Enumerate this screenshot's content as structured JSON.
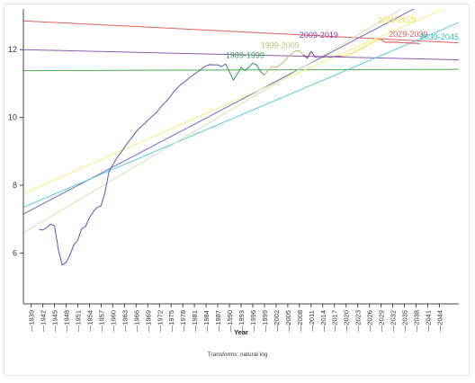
{
  "chart_data": {
    "type": "line",
    "title": "",
    "xlabel": "Year",
    "ylabel": "",
    "footnote": "Transforms: natural log",
    "xlim": [
      1937,
      2049
    ],
    "ylim": [
      4.5,
      13.2
    ],
    "yticks": [
      6,
      8,
      10,
      12
    ],
    "xticks": [
      1939,
      1942,
      1945,
      1948,
      1951,
      1954,
      1957,
      1960,
      1963,
      1966,
      1969,
      1972,
      1975,
      1978,
      1981,
      1984,
      1987,
      1990,
      1993,
      1996,
      1999,
      2002,
      2005,
      2008,
      2011,
      2014,
      2017,
      2020,
      2023,
      2026,
      2029,
      2032,
      2035,
      2038,
      2041,
      2044
    ],
    "series": [
      {
        "name": "",
        "color": "#5a6bbd",
        "points": [
          [
            1941,
            6.7
          ],
          [
            1942,
            6.68
          ],
          [
            1943,
            6.75
          ],
          [
            1944,
            6.85
          ],
          [
            1945,
            6.8
          ],
          [
            1946,
            6.1
          ],
          [
            1947,
            5.65
          ],
          [
            1948,
            5.72
          ],
          [
            1949,
            5.95
          ],
          [
            1950,
            6.25
          ],
          [
            1951,
            6.38
          ],
          [
            1952,
            6.72
          ],
          [
            1953,
            6.78
          ],
          [
            1954,
            7.05
          ],
          [
            1955,
            7.22
          ],
          [
            1956,
            7.35
          ],
          [
            1957,
            7.4
          ],
          [
            1958,
            7.8
          ],
          [
            1959,
            8.4
          ],
          [
            1960,
            8.6
          ],
          [
            1961,
            8.8
          ],
          [
            1962,
            8.95
          ],
          [
            1963,
            9.12
          ],
          [
            1964,
            9.28
          ],
          [
            1965,
            9.42
          ],
          [
            1966,
            9.58
          ],
          [
            1967,
            9.7
          ],
          [
            1968,
            9.8
          ],
          [
            1969,
            9.92
          ],
          [
            1970,
            10.02
          ],
          [
            1971,
            10.12
          ],
          [
            1972,
            10.26
          ],
          [
            1973,
            10.4
          ],
          [
            1974,
            10.5
          ],
          [
            1975,
            10.65
          ],
          [
            1976,
            10.8
          ],
          [
            1977,
            10.92
          ],
          [
            1978,
            11.02
          ],
          [
            1979,
            11.1
          ],
          [
            1980,
            11.2
          ],
          [
            1981,
            11.28
          ],
          [
            1982,
            11.36
          ],
          [
            1983,
            11.45
          ],
          [
            1984,
            11.52
          ],
          [
            1985,
            11.56
          ],
          [
            1986,
            11.55
          ],
          [
            1987,
            11.55
          ],
          [
            1988,
            11.5
          ],
          [
            1989,
            11.58
          ]
        ]
      },
      {
        "name": "1989-1999",
        "color": "#3a9e5c",
        "points": [
          [
            1989,
            11.58
          ],
          [
            1990,
            11.35
          ],
          [
            1991,
            11.1
          ],
          [
            1992,
            11.28
          ],
          [
            1993,
            11.48
          ],
          [
            1994,
            11.38
          ],
          [
            1995,
            11.48
          ],
          [
            1996,
            11.6
          ],
          [
            1997,
            11.55
          ],
          [
            1998,
            11.35
          ],
          [
            1999,
            11.25
          ]
        ]
      },
      {
        "name": "1999-2009",
        "color": "#c2bf7c",
        "points": [
          [
            1999,
            11.25
          ],
          [
            2000,
            11.4
          ],
          [
            2001,
            11.5
          ],
          [
            2002,
            11.48
          ],
          [
            2003,
            11.55
          ],
          [
            2004,
            11.65
          ],
          [
            2005,
            11.78
          ],
          [
            2006,
            11.88
          ],
          [
            2007,
            11.96
          ],
          [
            2008,
            11.96
          ],
          [
            2009,
            11.85
          ]
        ]
      },
      {
        "name": "2009-2019",
        "color": "#7b3fa0",
        "points": [
          [
            2009,
            11.85
          ],
          [
            2010,
            11.75
          ],
          [
            2011,
            11.95
          ],
          [
            2012,
            11.78
          ],
          [
            2013,
            11.8
          ],
          [
            2014,
            11.78
          ],
          [
            2015,
            11.8
          ],
          [
            2016,
            11.78
          ],
          [
            2017,
            11.8
          ],
          [
            2018,
            11.8
          ],
          [
            2019,
            11.8
          ]
        ]
      },
      {
        "name": "2019-2029",
        "color": "#f3dc3c",
        "points": [
          [
            2019,
            11.8
          ],
          [
            2020,
            11.82
          ],
          [
            2021,
            11.86
          ],
          [
            2022,
            11.92
          ],
          [
            2023,
            11.98
          ],
          [
            2024,
            12.04
          ],
          [
            2025,
            12.1
          ],
          [
            2026,
            12.16
          ],
          [
            2027,
            12.22
          ],
          [
            2028,
            12.28
          ],
          [
            2029,
            12.3
          ]
        ]
      },
      {
        "name": "2029-2039",
        "color": "#e05a5a",
        "points": [
          [
            2029,
            12.3
          ],
          [
            2030,
            12.22
          ],
          [
            2031,
            12.22
          ],
          [
            2032,
            12.22
          ],
          [
            2033,
            12.22
          ],
          [
            2034,
            12.21
          ],
          [
            2035,
            12.2
          ],
          [
            2036,
            12.2
          ],
          [
            2037,
            12.19
          ],
          [
            2038,
            12.19
          ],
          [
            2039,
            12.18
          ]
        ]
      }
    ],
    "trend_lines": [
      {
        "color": "#e0605a",
        "from": [
          1937,
          12.85
        ],
        "to": [
          2049,
          12.2
        ]
      },
      {
        "color": "#8a5ab8",
        "from": [
          1937,
          12.0
        ],
        "to": [
          2049,
          11.7
        ]
      },
      {
        "color": "#4caf50",
        "from": [
          1937,
          11.38
        ],
        "to": [
          2049,
          11.42
        ]
      },
      {
        "color": "#6a6ad0",
        "from": [
          1937,
          7.15
        ],
        "to": [
          2049,
          13.9
        ]
      },
      {
        "color": "#f5ee7a",
        "from": [
          1937,
          7.75
        ],
        "to": [
          2049,
          13.4
        ]
      },
      {
        "color": "#56cddb",
        "from": [
          1937,
          7.35
        ],
        "to": [
          2049,
          12.8
        ]
      },
      {
        "color": "#cfe2b4",
        "from": [
          1937,
          6.6
        ],
        "to": [
          2049,
          14.2
        ]
      }
    ],
    "annotations": [
      {
        "text": "1989-1999",
        "x": 1994,
        "y": 11.75,
        "color": "#3a9e5c"
      },
      {
        "text": "1999-2009",
        "x": 2003,
        "y": 12.05,
        "color": "#c2bf7c"
      },
      {
        "text": "2009-2019",
        "x": 2013,
        "y": 12.35,
        "color": "#7b3fa0"
      },
      {
        "text": "2019-2029",
        "x": 2033,
        "y": 12.8,
        "color": "#f3dc3c"
      },
      {
        "text": "2029-2039",
        "x": 2036,
        "y": 12.38,
        "color": "#e05a5a"
      },
      {
        "text": "2039-2045",
        "x": 2044,
        "y": 12.3,
        "color": "#2bb6bf"
      }
    ]
  }
}
